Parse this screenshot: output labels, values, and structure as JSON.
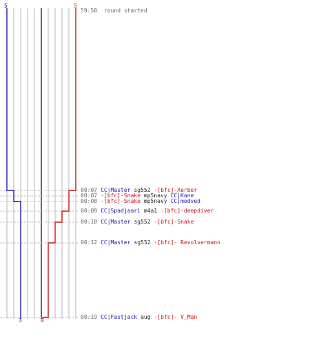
{
  "colors": {
    "team_blue": "#1a1aa6",
    "team_red": "#c81414",
    "grid": "#b4b4b4",
    "center_line": "#666666",
    "dash": "#bdbdbd",
    "time_text": "#666666"
  },
  "score_top": {
    "blue": "5",
    "red": "5"
  },
  "score_bottom": {
    "blue": "3",
    "red": "0"
  },
  "start_event": {
    "time": "59:50",
    "text": "round started"
  },
  "events": [
    {
      "time": "00:07",
      "killer": "CC|Master",
      "weapon": "sg552",
      "victim": "-[bfc]-Xerber",
      "killer_team": "blue",
      "victim_team": "red"
    },
    {
      "time": "00:07",
      "killer": "-[bfc]-Snake",
      "weapon": "mp5navy",
      "victim": "CC|Kane",
      "killer_team": "red",
      "victim_team": "blue"
    },
    {
      "time": "00:08",
      "killer": "-[bfc]-Snake",
      "weapon": "mp5navy",
      "victim": "CC|medved",
      "killer_team": "red",
      "victim_team": "blue"
    },
    {
      "time": "00:09",
      "killer": "CC|Spadjaari",
      "weapon": "m4a1",
      "victim": "-[bfc]-deepdiver",
      "killer_team": "blue",
      "victim_team": "red"
    },
    {
      "time": "00:10",
      "killer": "CC|Master",
      "weapon": "sg552",
      "victim": "-[bfc]-Snake",
      "killer_team": "blue",
      "victim_team": "red"
    },
    {
      "time": "00:12",
      "killer": "CC|Master",
      "weapon": "sg552",
      "victim": "-[bfc]- Revolvermann",
      "killer_team": "blue",
      "victim_team": "red"
    },
    {
      "time": "00:19",
      "killer": "CC|Fastjack",
      "weapon": "aug",
      "victim": "-[bfc]- V_Man",
      "killer_team": "blue",
      "victim_team": "red"
    }
  ]
}
